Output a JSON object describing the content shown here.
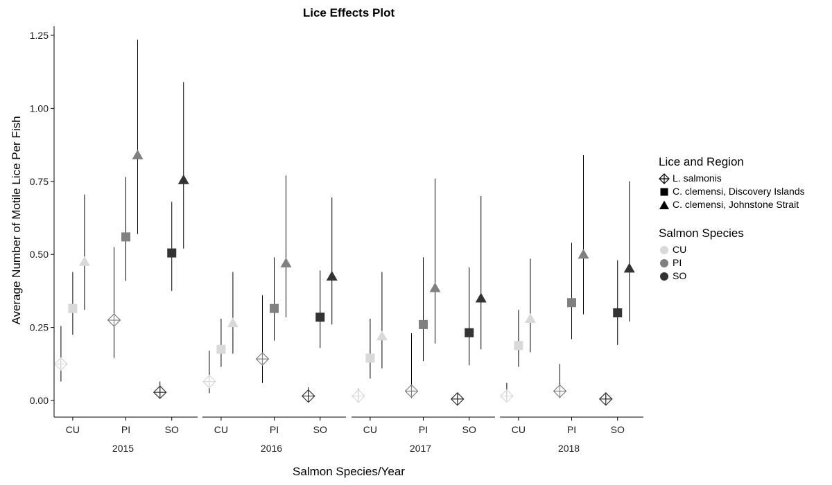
{
  "chart_data": {
    "type": "scatter",
    "title": "Lice Effects Plot",
    "xlabel": "Salmon Species/Year",
    "ylabel": "Average Number of Motile Lice Per Fish",
    "ylim": [
      -0.06,
      1.3
    ],
    "yticks": [
      "0.00",
      "0.25",
      "0.50",
      "0.75",
      "1.00",
      "1.25"
    ],
    "panels": [
      "2015",
      "2016",
      "2017",
      "2018"
    ],
    "categories": [
      "CU",
      "PI",
      "SO"
    ],
    "legend_lice": {
      "title": "Lice and Region",
      "items": [
        {
          "name": "L. salmonis",
          "shape": "diamond-plus"
        },
        {
          "name": "C. clemensi, Discovery Islands",
          "shape": "square"
        },
        {
          "name": "C. clemensi, Johnstone Strait",
          "shape": "triangle"
        }
      ]
    },
    "legend_species": {
      "title": "Salmon Species",
      "items": [
        {
          "name": "CU",
          "color": "#d9d9d9"
        },
        {
          "name": "PI",
          "color": "#808080"
        },
        {
          "name": "SO",
          "color": "#333333"
        }
      ]
    },
    "series": [
      {
        "panel": "2015",
        "species": "CU",
        "lice": "L. salmonis",
        "y": 0.125,
        "lo": 0.065,
        "hi": 0.255
      },
      {
        "panel": "2015",
        "species": "CU",
        "lice": "C. clemensi, Discovery Islands",
        "y": 0.315,
        "lo": 0.225,
        "hi": 0.44
      },
      {
        "panel": "2015",
        "species": "CU",
        "lice": "C. clemensi, Johnstone Strait",
        "y": 0.475,
        "lo": 0.31,
        "hi": 0.705
      },
      {
        "panel": "2015",
        "species": "PI",
        "lice": "L. salmonis",
        "y": 0.275,
        "lo": 0.145,
        "hi": 0.525
      },
      {
        "panel": "2015",
        "species": "PI",
        "lice": "C. clemensi, Discovery Islands",
        "y": 0.56,
        "lo": 0.41,
        "hi": 0.765
      },
      {
        "panel": "2015",
        "species": "PI",
        "lice": "C. clemensi, Johnstone Strait",
        "y": 0.84,
        "lo": 0.57,
        "hi": 1.235
      },
      {
        "panel": "2015",
        "species": "SO",
        "lice": "L. salmonis",
        "y": 0.028,
        "lo": 0.012,
        "hi": 0.065
      },
      {
        "panel": "2015",
        "species": "SO",
        "lice": "C. clemensi, Discovery Islands",
        "y": 0.505,
        "lo": 0.375,
        "hi": 0.68
      },
      {
        "panel": "2015",
        "species": "SO",
        "lice": "C. clemensi, Johnstone Strait",
        "y": 0.755,
        "lo": 0.52,
        "hi": 1.09
      },
      {
        "panel": "2016",
        "species": "CU",
        "lice": "L. salmonis",
        "y": 0.065,
        "lo": 0.025,
        "hi": 0.17
      },
      {
        "panel": "2016",
        "species": "CU",
        "lice": "C. clemensi, Discovery Islands",
        "y": 0.175,
        "lo": 0.115,
        "hi": 0.28
      },
      {
        "panel": "2016",
        "species": "CU",
        "lice": "C. clemensi, Johnstone Strait",
        "y": 0.265,
        "lo": 0.16,
        "hi": 0.44
      },
      {
        "panel": "2016",
        "species": "PI",
        "lice": "L. salmonis",
        "y": 0.142,
        "lo": 0.06,
        "hi": 0.36
      },
      {
        "panel": "2016",
        "species": "PI",
        "lice": "C. clemensi, Discovery Islands",
        "y": 0.315,
        "lo": 0.205,
        "hi": 0.49
      },
      {
        "panel": "2016",
        "species": "PI",
        "lice": "C. clemensi, Johnstone Strait",
        "y": 0.47,
        "lo": 0.285,
        "hi": 0.77
      },
      {
        "panel": "2016",
        "species": "SO",
        "lice": "L. salmonis",
        "y": 0.015,
        "lo": 0.003,
        "hi": 0.045
      },
      {
        "panel": "2016",
        "species": "SO",
        "lice": "C. clemensi, Discovery Islands",
        "y": 0.285,
        "lo": 0.18,
        "hi": 0.445
      },
      {
        "panel": "2016",
        "species": "SO",
        "lice": "C. clemensi, Johnstone Strait",
        "y": 0.425,
        "lo": 0.26,
        "hi": 0.695
      },
      {
        "panel": "2017",
        "species": "CU",
        "lice": "L. salmonis",
        "y": 0.015,
        "lo": 0.003,
        "hi": 0.04
      },
      {
        "panel": "2017",
        "species": "CU",
        "lice": "C. clemensi, Discovery Islands",
        "y": 0.145,
        "lo": 0.075,
        "hi": 0.28
      },
      {
        "panel": "2017",
        "species": "CU",
        "lice": "C. clemensi, Johnstone Strait",
        "y": 0.22,
        "lo": 0.11,
        "hi": 0.44
      },
      {
        "panel": "2017",
        "species": "PI",
        "lice": "L. salmonis",
        "y": 0.032,
        "lo": 0.008,
        "hi": 0.23
      },
      {
        "panel": "2017",
        "species": "PI",
        "lice": "C. clemensi, Discovery Islands",
        "y": 0.26,
        "lo": 0.135,
        "hi": 0.49
      },
      {
        "panel": "2017",
        "species": "PI",
        "lice": "C. clemensi, Johnstone Strait",
        "y": 0.385,
        "lo": 0.195,
        "hi": 0.76
      },
      {
        "panel": "2017",
        "species": "SO",
        "lice": "L. salmonis",
        "y": 0.005,
        "lo": 0.0,
        "hi": 0.02
      },
      {
        "panel": "2017",
        "species": "SO",
        "lice": "C. clemensi, Discovery Islands",
        "y": 0.232,
        "lo": 0.12,
        "hi": 0.455
      },
      {
        "panel": "2017",
        "species": "SO",
        "lice": "C. clemensi, Johnstone Strait",
        "y": 0.35,
        "lo": 0.175,
        "hi": 0.7
      },
      {
        "panel": "2018",
        "species": "CU",
        "lice": "L. salmonis",
        "y": 0.015,
        "lo": 0.003,
        "hi": 0.06
      },
      {
        "panel": "2018",
        "species": "CU",
        "lice": "C. clemensi, Discovery Islands",
        "y": 0.188,
        "lo": 0.115,
        "hi": 0.31
      },
      {
        "panel": "2018",
        "species": "CU",
        "lice": "C. clemensi, Johnstone Strait",
        "y": 0.28,
        "lo": 0.165,
        "hi": 0.485
      },
      {
        "panel": "2018",
        "species": "PI",
        "lice": "L. salmonis",
        "y": 0.032,
        "lo": 0.008,
        "hi": 0.125
      },
      {
        "panel": "2018",
        "species": "PI",
        "lice": "C. clemensi, Discovery Islands",
        "y": 0.335,
        "lo": 0.21,
        "hi": 0.54
      },
      {
        "panel": "2018",
        "species": "PI",
        "lice": "C. clemensi, Johnstone Strait",
        "y": 0.5,
        "lo": 0.295,
        "hi": 0.84
      },
      {
        "panel": "2018",
        "species": "SO",
        "lice": "L. salmonis",
        "y": 0.005,
        "lo": 0.0,
        "hi": 0.02
      },
      {
        "panel": "2018",
        "species": "SO",
        "lice": "C. clemensi, Discovery Islands",
        "y": 0.3,
        "lo": 0.19,
        "hi": 0.48
      },
      {
        "panel": "2018",
        "species": "SO",
        "lice": "C. clemensi, Johnstone Strait",
        "y": 0.452,
        "lo": 0.27,
        "hi": 0.75
      }
    ]
  }
}
